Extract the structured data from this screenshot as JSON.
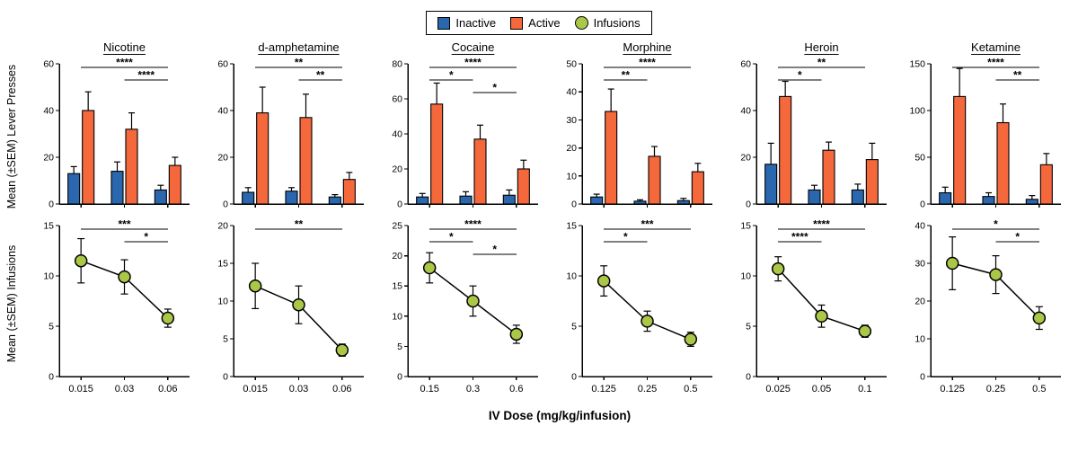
{
  "page": {
    "colors": {
      "inactive": "#2A67AE",
      "active": "#F4683C",
      "infusions": "#ABC747",
      "axis": "#000000"
    },
    "legend": {
      "items": [
        {
          "label": "Inactive",
          "shape": "square",
          "color": "#2A67AE"
        },
        {
          "label": "Active",
          "shape": "square",
          "color": "#F4683C"
        },
        {
          "label": "Infusions",
          "shape": "circle",
          "color": "#ABC747"
        }
      ]
    },
    "axis_labels": {
      "top_y": "Mean (±SEM) Lever Presses",
      "bottom_y": "Mean (±SEM) Infusions",
      "x": "IV Dose (mg/kg/infusion)"
    }
  },
  "chart_data": [
    {
      "drug": "Nicotine",
      "doses": [
        "0.015",
        "0.03",
        "0.06"
      ],
      "lever_presses": {
        "type": "bar",
        "ylim": [
          0,
          60
        ],
        "yticks": [
          0,
          20,
          40,
          60
        ],
        "series": [
          {
            "name": "Inactive",
            "values": [
              13,
              14,
              6
            ],
            "sem": [
              3,
              4,
              2
            ]
          },
          {
            "name": "Active",
            "values": [
              40,
              32,
              16.5
            ],
            "sem": [
              8,
              7,
              3.5
            ]
          }
        ],
        "significance": [
          {
            "from": 0,
            "to": 2,
            "label": "****",
            "level": 1
          },
          {
            "from": 1,
            "to": 2,
            "label": "****",
            "level": 0
          }
        ]
      },
      "infusions": {
        "type": "line",
        "ylim": [
          0,
          15
        ],
        "yticks": [
          0,
          5,
          10,
          15
        ],
        "values": [
          11.5,
          9.9,
          5.8
        ],
        "sem": [
          2.2,
          1.7,
          0.9
        ],
        "significance": [
          {
            "from": 0,
            "to": 2,
            "label": "***",
            "level": 1
          },
          {
            "from": 1,
            "to": 2,
            "label": "*",
            "level": 0
          }
        ]
      }
    },
    {
      "drug": "d-amphetamine",
      "doses": [
        "0.015",
        "0.03",
        "0.06"
      ],
      "lever_presses": {
        "type": "bar",
        "ylim": [
          0,
          60
        ],
        "yticks": [
          0,
          20,
          40,
          60
        ],
        "series": [
          {
            "name": "Inactive",
            "values": [
              5,
              5.5,
              3
            ],
            "sem": [
              2,
              1.5,
              1
            ]
          },
          {
            "name": "Active",
            "values": [
              39,
              37,
              10.5
            ],
            "sem": [
              11,
              10,
              3
            ]
          }
        ],
        "significance": [
          {
            "from": 0,
            "to": 2,
            "label": "**",
            "level": 1
          },
          {
            "from": 1,
            "to": 2,
            "label": "**",
            "level": 0
          }
        ]
      },
      "infusions": {
        "type": "line",
        "ylim": [
          0,
          20
        ],
        "yticks": [
          0,
          5,
          10,
          15,
          20
        ],
        "values": [
          12,
          9.5,
          3.5
        ],
        "sem": [
          3,
          2.5,
          0.8
        ],
        "significance": [
          {
            "from": 0,
            "to": 2,
            "label": "**",
            "level": 0
          }
        ]
      }
    },
    {
      "drug": "Cocaine",
      "doses": [
        "0.15",
        "0.3",
        "0.6"
      ],
      "lever_presses": {
        "type": "bar",
        "ylim": [
          0,
          80
        ],
        "yticks": [
          0,
          20,
          40,
          60,
          80
        ],
        "series": [
          {
            "name": "Inactive",
            "values": [
              4,
              4.5,
              5
            ],
            "sem": [
              2,
              2.5,
              3
            ]
          },
          {
            "name": "Active",
            "values": [
              57,
              37,
              20
            ],
            "sem": [
              12,
              8,
              5
            ]
          }
        ],
        "significance": [
          {
            "from": 0,
            "to": 2,
            "label": "****",
            "level": 2
          },
          {
            "from": 0,
            "to": 1,
            "label": "*",
            "level": 1
          },
          {
            "from": 1,
            "to": 2,
            "label": "*",
            "level": 0
          }
        ]
      },
      "infusions": {
        "type": "line",
        "ylim": [
          0,
          25
        ],
        "yticks": [
          0,
          5,
          10,
          15,
          20,
          25
        ],
        "values": [
          18,
          12.5,
          7
        ],
        "sem": [
          2.5,
          2.5,
          1.5
        ],
        "significance": [
          {
            "from": 0,
            "to": 2,
            "label": "****",
            "level": 2
          },
          {
            "from": 0,
            "to": 1,
            "label": "*",
            "level": 1
          },
          {
            "from": 1,
            "to": 2,
            "label": "*",
            "level": 0
          }
        ]
      }
    },
    {
      "drug": "Morphine",
      "doses": [
        "0.125",
        "0.25",
        "0.5"
      ],
      "lever_presses": {
        "type": "bar",
        "ylim": [
          0,
          50
        ],
        "yticks": [
          0,
          10,
          20,
          30,
          40,
          50
        ],
        "series": [
          {
            "name": "Inactive",
            "values": [
              2.5,
              1,
              1.2
            ],
            "sem": [
              1,
              0.5,
              0.8
            ]
          },
          {
            "name": "Active",
            "values": [
              33,
              17,
              11.5
            ],
            "sem": [
              8,
              3.5,
              3
            ]
          }
        ],
        "significance": [
          {
            "from": 0,
            "to": 2,
            "label": "****",
            "level": 1
          },
          {
            "from": 0,
            "to": 1,
            "label": "**",
            "level": 0
          }
        ]
      },
      "infusions": {
        "type": "line",
        "ylim": [
          0,
          15
        ],
        "yticks": [
          0,
          5,
          10,
          15
        ],
        "values": [
          9.5,
          5.5,
          3.7
        ],
        "sem": [
          1.5,
          1,
          0.7
        ],
        "significance": [
          {
            "from": 0,
            "to": 2,
            "label": "***",
            "level": 1
          },
          {
            "from": 0,
            "to": 1,
            "label": "*",
            "level": 0
          }
        ]
      }
    },
    {
      "drug": "Heroin",
      "doses": [
        "0.025",
        "0.05",
        "0.1"
      ],
      "lever_presses": {
        "type": "bar",
        "ylim": [
          0,
          60
        ],
        "yticks": [
          0,
          20,
          40,
          60
        ],
        "series": [
          {
            "name": "Inactive",
            "values": [
              17,
              6,
              6
            ],
            "sem": [
              9,
              2,
              2.5
            ]
          },
          {
            "name": "Active",
            "values": [
              46,
              23,
              19
            ],
            "sem": [
              6.5,
              3.5,
              7
            ]
          }
        ],
        "significance": [
          {
            "from": 0,
            "to": 2,
            "label": "**",
            "level": 1
          },
          {
            "from": 0,
            "to": 1,
            "label": "*",
            "level": 0
          }
        ]
      },
      "infusions": {
        "type": "line",
        "ylim": [
          0,
          15
        ],
        "yticks": [
          0,
          5,
          10,
          15
        ],
        "values": [
          10.7,
          6,
          4.5
        ],
        "sem": [
          1.2,
          1.1,
          0.6
        ],
        "significance": [
          {
            "from": 0,
            "to": 2,
            "label": "****",
            "level": 1
          },
          {
            "from": 0,
            "to": 1,
            "label": "****",
            "level": 0
          }
        ]
      }
    },
    {
      "drug": "Ketamine",
      "doses": [
        "0.125",
        "0.25",
        "0.5"
      ],
      "lever_presses": {
        "type": "bar",
        "ylim": [
          0,
          150
        ],
        "yticks": [
          0,
          50,
          100,
          150
        ],
        "series": [
          {
            "name": "Inactive",
            "values": [
              12,
              8,
              5
            ],
            "sem": [
              6,
              4,
              4
            ]
          },
          {
            "name": "Active",
            "values": [
              115,
              87,
              42
            ],
            "sem": [
              30,
              20,
              12
            ]
          }
        ],
        "significance": [
          {
            "from": 0,
            "to": 2,
            "label": "****",
            "level": 1
          },
          {
            "from": 1,
            "to": 2,
            "label": "**",
            "level": 0
          }
        ]
      },
      "infusions": {
        "type": "line",
        "ylim": [
          0,
          40
        ],
        "yticks": [
          0,
          10,
          20,
          30,
          40
        ],
        "values": [
          30,
          27,
          15.5
        ],
        "sem": [
          7,
          5,
          3
        ],
        "significance": [
          {
            "from": 0,
            "to": 2,
            "label": "*",
            "level": 1
          },
          {
            "from": 1,
            "to": 2,
            "label": "*",
            "level": 0
          }
        ]
      }
    }
  ]
}
